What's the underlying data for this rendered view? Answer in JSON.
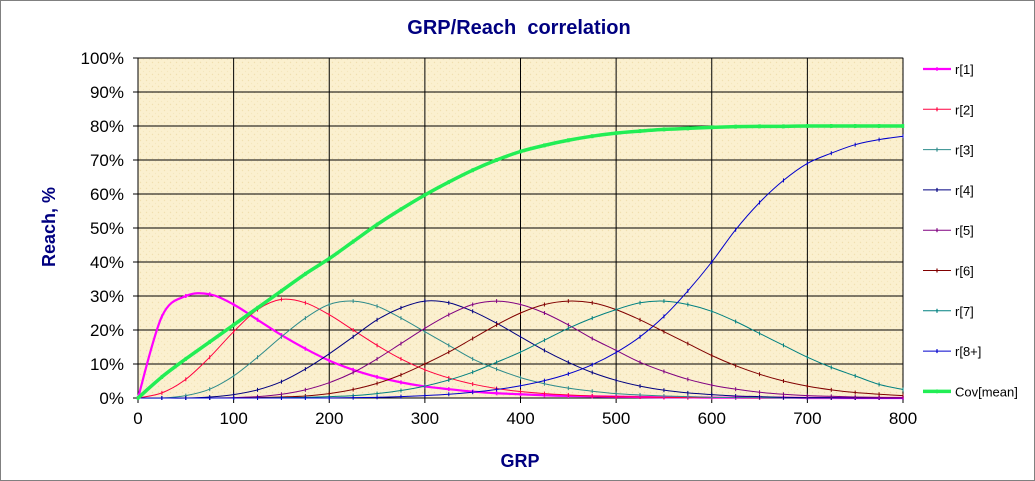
{
  "chart_data": {
    "type": "line",
    "title": "GRP/Reach  correlation",
    "xlabel": "GRP",
    "ylabel": "Reach, %",
    "xlim": [
      0,
      800
    ],
    "ylim": [
      0,
      100
    ],
    "x_ticks": [
      "0",
      "100",
      "200",
      "300",
      "400",
      "500",
      "600",
      "700",
      "800"
    ],
    "y_ticks": [
      "0%",
      "10%",
      "20%",
      "30%",
      "40%",
      "50%",
      "60%",
      "70%",
      "80%",
      "90%",
      "100%"
    ],
    "grid": true,
    "legend_position": "right",
    "x": [
      0,
      25,
      50,
      75,
      100,
      125,
      150,
      175,
      200,
      225,
      250,
      275,
      300,
      325,
      350,
      375,
      400,
      425,
      450,
      475,
      500,
      525,
      550,
      575,
      600,
      625,
      650,
      675,
      700,
      725,
      750,
      775,
      800
    ],
    "series": [
      {
        "name": "r[1]",
        "color": "#ff00ff",
        "width": 2.2,
        "values": [
          0,
          24,
          30,
          30.5,
          27.5,
          23,
          18.5,
          14.5,
          11,
          8.3,
          6.2,
          4.6,
          3.4,
          2.6,
          1.9,
          1.4,
          1.1,
          0.8,
          0.6,
          0.5,
          0.4,
          0.3,
          0.2,
          0.2,
          0.1,
          0.1,
          0.1,
          0.1,
          0,
          0,
          0,
          0,
          0
        ]
      },
      {
        "name": "r[2]",
        "color": "#ff0040",
        "width": 1,
        "values": [
          0,
          1.5,
          5.5,
          12,
          19.5,
          26,
          29,
          28,
          24.5,
          20,
          15.5,
          11.5,
          8.3,
          5.9,
          4.1,
          2.8,
          1.9,
          1.3,
          0.9,
          0.6,
          0.4,
          0.3,
          0.2,
          0.1,
          0.1,
          0.1,
          0,
          0,
          0,
          0,
          0,
          0,
          0
        ]
      },
      {
        "name": "r[3]",
        "color": "#2e8b8b",
        "width": 1,
        "values": [
          0,
          0,
          0.7,
          2.6,
          6.5,
          12,
          18,
          23.5,
          27.5,
          28.5,
          27,
          23.5,
          19.5,
          15.5,
          11.5,
          8.5,
          6,
          4.2,
          2.9,
          2,
          1.3,
          0.9,
          0.6,
          0.4,
          0.2,
          0.1,
          0.1,
          0,
          0,
          0,
          0,
          0,
          0
        ]
      },
      {
        "name": "r[4]",
        "color": "#000080",
        "width": 1,
        "values": [
          0,
          0,
          0,
          0.3,
          1,
          2.4,
          4.8,
          8.5,
          13,
          18,
          23,
          26.5,
          28.5,
          28,
          25.5,
          22,
          18,
          14,
          10.5,
          7.5,
          5.2,
          3.5,
          2.3,
          1.5,
          1,
          0.6,
          0.4,
          0.2,
          0.1,
          0.1,
          0,
          0,
          0
        ]
      },
      {
        "name": "r[5]",
        "color": "#800080",
        "width": 1,
        "values": [
          0,
          0,
          0,
          0,
          0.1,
          0.4,
          1.1,
          2.4,
          4.5,
          7.5,
          11.5,
          16,
          20.5,
          24.5,
          27.5,
          28.5,
          27.5,
          25,
          21.5,
          17.5,
          14,
          10.5,
          7.8,
          5.5,
          3.8,
          2.6,
          1.7,
          1.1,
          0.7,
          0.5,
          0.3,
          0.2,
          0.1
        ]
      },
      {
        "name": "r[6]",
        "color": "#800000",
        "width": 1,
        "values": [
          0,
          0,
          0,
          0,
          0,
          0.1,
          0.3,
          0.6,
          1.3,
          2.5,
          4.3,
          6.8,
          10,
          13.5,
          17.5,
          21.5,
          25,
          27.5,
          28.5,
          28,
          26,
          23,
          19.5,
          16,
          12.5,
          9.5,
          7,
          5,
          3.5,
          2.4,
          1.6,
          1.1,
          0.7
        ]
      },
      {
        "name": "r[7]",
        "color": "#008080",
        "width": 1,
        "values": [
          0,
          0,
          0,
          0,
          0,
          0,
          0.1,
          0.2,
          0.4,
          0.7,
          1.3,
          2.2,
          3.5,
          5.3,
          7.6,
          10.5,
          13.5,
          17,
          20.5,
          23.5,
          26,
          28,
          28.5,
          27.5,
          25.5,
          22.5,
          19,
          15.5,
          12,
          9,
          6.5,
          4,
          2.5
        ]
      },
      {
        "name": "r[8+]",
        "color": "#0000cc",
        "width": 1,
        "values": [
          0,
          0,
          0,
          0,
          0,
          0,
          0,
          0,
          0,
          0.1,
          0.2,
          0.4,
          0.7,
          1.1,
          1.7,
          2.5,
          3.6,
          5.1,
          7.1,
          9.8,
          13.4,
          18,
          24,
          31.5,
          40,
          49.5,
          57.5,
          64,
          69,
          72,
          74.5,
          76,
          77
        ]
      },
      {
        "name": "Cov[mean]",
        "color": "#22ee55",
        "width": 3.5,
        "values": [
          0,
          6.2,
          11.5,
          16.5,
          21.5,
          26.5,
          31.5,
          36.5,
          41,
          46,
          51,
          55.5,
          59.7,
          63.5,
          67,
          70,
          72.5,
          74.3,
          75.8,
          77,
          77.9,
          78.5,
          79,
          79.3,
          79.6,
          79.8,
          79.9,
          79.9,
          80,
          80,
          80,
          80,
          80
        ]
      }
    ]
  }
}
